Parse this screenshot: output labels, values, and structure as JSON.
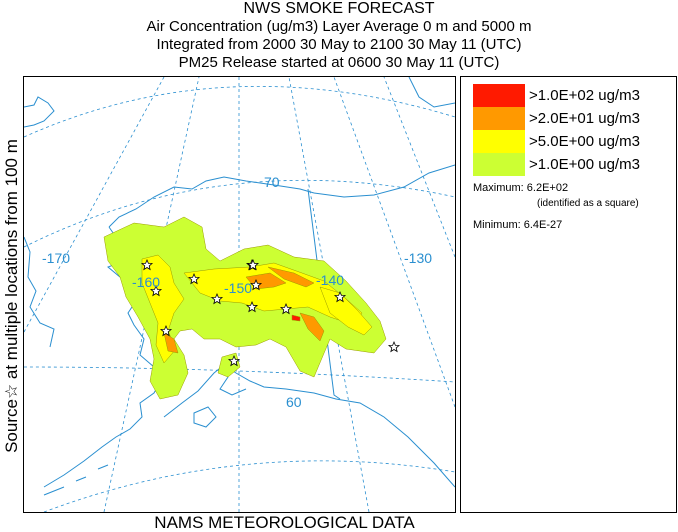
{
  "title_lines": [
    "NWS SMOKE FORECAST",
    "Air Concentration (ug/m3) Layer Average    0 m and  5000 m",
    "Integrated from 2000 30 May to 2100 30 May 11 (UTC)",
    "PM25 Release started at 0600 30 May 11 (UTC)"
  ],
  "side_label": "Source☆   at multiple locations   from   100 m",
  "bottom_label": "NAMS METEOROLOGICAL DATA",
  "map_labels": {
    "lon_170": "-170",
    "lon_160": "-160",
    "lon_150": "-150",
    "lon_140": "-140",
    "lon_130": "-130",
    "lat_70": "70",
    "lat_60": "60"
  },
  "legend": {
    "entries": [
      {
        "label": ">1.0E+02 ug/m3",
        "color": "#ff1a00"
      },
      {
        "label": ">2.0E+01 ug/m3",
        "color": "#ff9900"
      },
      {
        "label": ">5.0E+00 ug/m3",
        "color": "#ffff00"
      },
      {
        "label": ">1.0E+00 ug/m3",
        "color": "#ccff33"
      }
    ],
    "maximum": "Maximum: 6.2E+02",
    "maximum_note": "(identified as a square)",
    "minimum": "Minimum: 6.4E-27"
  },
  "colors": {
    "coast": "#2a8fd0",
    "grid": "#2a8fd0",
    "border": "#2a8fd0",
    "level1": "#ccff33",
    "level2": "#ffff00",
    "level3": "#ff9900",
    "level4": "#ff1a00"
  },
  "source_marker_icon": "star-icon"
}
